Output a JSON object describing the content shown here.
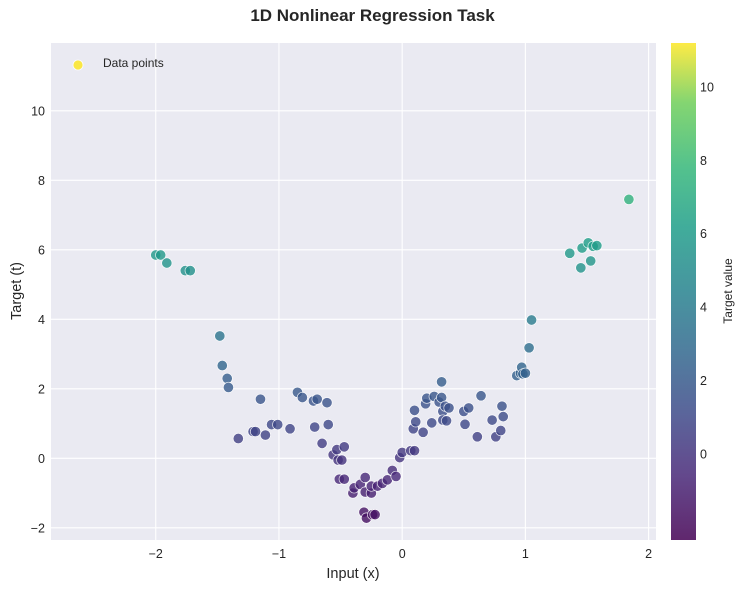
{
  "chart_data": {
    "type": "scatter",
    "title": "1D Nonlinear Regression Task",
    "xlabel": "Input (x)",
    "ylabel": "Target (t)",
    "xlim": [
      -2.85,
      2.06
    ],
    "ylim": [
      -2.35,
      11.95
    ],
    "xticks": [
      -2,
      -1,
      0,
      1,
      2
    ],
    "xtick_labels": [
      "−2",
      "−1",
      "0",
      "1",
      "2"
    ],
    "yticks": [
      -2,
      0,
      2,
      4,
      6,
      8,
      10
    ],
    "ytick_labels": [
      "−2",
      "0",
      "2",
      "4",
      "6",
      "8",
      "10"
    ],
    "grid": true,
    "legend": {
      "position": "upper left",
      "entries": [
        "Data points"
      ]
    },
    "colorbar": {
      "label": "Target value",
      "colormap": "viridis",
      "range": [
        -2.35,
        11.2
      ],
      "ticks": [
        0,
        2,
        4,
        6,
        8,
        10
      ],
      "tick_labels": [
        "0",
        "2",
        "4",
        "6",
        "8",
        "10"
      ]
    },
    "series": [
      {
        "name": "Data points",
        "points": [
          {
            "x": -2.0,
            "y": 5.85
          },
          {
            "x": -1.96,
            "y": 5.85
          },
          {
            "x": -1.91,
            "y": 5.62
          },
          {
            "x": -1.76,
            "y": 5.4
          },
          {
            "x": -1.72,
            "y": 5.4
          },
          {
            "x": -1.48,
            "y": 3.52
          },
          {
            "x": -1.46,
            "y": 2.67
          },
          {
            "x": -1.42,
            "y": 2.3
          },
          {
            "x": -1.41,
            "y": 2.04
          },
          {
            "x": -1.33,
            "y": 0.57
          },
          {
            "x": -1.21,
            "y": 0.77
          },
          {
            "x": -1.19,
            "y": 0.77
          },
          {
            "x": -1.15,
            "y": 1.7
          },
          {
            "x": -1.11,
            "y": 0.67
          },
          {
            "x": -1.06,
            "y": 0.97
          },
          {
            "x": -1.01,
            "y": 0.97
          },
          {
            "x": -0.91,
            "y": 0.85
          },
          {
            "x": -0.85,
            "y": 1.9
          },
          {
            "x": -0.81,
            "y": 1.75
          },
          {
            "x": -0.72,
            "y": 1.65
          },
          {
            "x": -0.69,
            "y": 1.7
          },
          {
            "x": -0.71,
            "y": 0.9
          },
          {
            "x": -0.65,
            "y": 0.43
          },
          {
            "x": -0.61,
            "y": 1.6
          },
          {
            "x": -0.6,
            "y": 0.97
          },
          {
            "x": -0.56,
            "y": 0.1
          },
          {
            "x": -0.53,
            "y": 0.25
          },
          {
            "x": -0.52,
            "y": -0.05
          },
          {
            "x": -0.49,
            "y": -0.05
          },
          {
            "x": -0.47,
            "y": 0.33
          },
          {
            "x": -0.51,
            "y": -0.6
          },
          {
            "x": -0.47,
            "y": -0.6
          },
          {
            "x": -0.4,
            "y": -1.0
          },
          {
            "x": -0.39,
            "y": -0.85
          },
          {
            "x": -0.34,
            "y": -0.75
          },
          {
            "x": -0.3,
            "y": -0.55
          },
          {
            "x": -0.3,
            "y": -0.97
          },
          {
            "x": -0.25,
            "y": -1.0
          },
          {
            "x": -0.25,
            "y": -0.8
          },
          {
            "x": -0.2,
            "y": -0.8
          },
          {
            "x": -0.16,
            "y": -0.72
          },
          {
            "x": -0.12,
            "y": -0.62
          },
          {
            "x": -0.08,
            "y": -0.35
          },
          {
            "x": -0.05,
            "y": -0.52
          },
          {
            "x": -0.31,
            "y": -1.55
          },
          {
            "x": -0.29,
            "y": -1.72
          },
          {
            "x": -0.24,
            "y": -1.62
          },
          {
            "x": -0.22,
            "y": -1.62
          },
          {
            "x": -0.02,
            "y": 0.02
          },
          {
            "x": 0.0,
            "y": 0.17
          },
          {
            "x": 0.07,
            "y": 0.22
          },
          {
            "x": 0.1,
            "y": 0.22
          },
          {
            "x": 0.09,
            "y": 0.85
          },
          {
            "x": 0.11,
            "y": 1.05
          },
          {
            "x": 0.1,
            "y": 1.38
          },
          {
            "x": 0.17,
            "y": 0.75
          },
          {
            "x": 0.19,
            "y": 1.57
          },
          {
            "x": 0.2,
            "y": 1.73
          },
          {
            "x": 0.24,
            "y": 1.02
          },
          {
            "x": 0.26,
            "y": 1.78
          },
          {
            "x": 0.3,
            "y": 1.62
          },
          {
            "x": 0.32,
            "y": 1.75
          },
          {
            "x": 0.32,
            "y": 2.2
          },
          {
            "x": 0.33,
            "y": 1.35
          },
          {
            "x": 0.33,
            "y": 1.1
          },
          {
            "x": 0.35,
            "y": 1.5
          },
          {
            "x": 0.36,
            "y": 1.08
          },
          {
            "x": 0.38,
            "y": 1.45
          },
          {
            "x": 0.5,
            "y": 1.35
          },
          {
            "x": 0.51,
            "y": 0.98
          },
          {
            "x": 0.54,
            "y": 1.45
          },
          {
            "x": 0.61,
            "y": 0.62
          },
          {
            "x": 0.64,
            "y": 1.8
          },
          {
            "x": 0.73,
            "y": 1.1
          },
          {
            "x": 0.76,
            "y": 0.62
          },
          {
            "x": 0.8,
            "y": 0.8
          },
          {
            "x": 0.81,
            "y": 1.5
          },
          {
            "x": 0.82,
            "y": 1.2
          },
          {
            "x": 0.93,
            "y": 2.38
          },
          {
            "x": 0.96,
            "y": 2.45
          },
          {
            "x": 0.97,
            "y": 2.62
          },
          {
            "x": 0.98,
            "y": 2.43
          },
          {
            "x": 1.0,
            "y": 2.45
          },
          {
            "x": 1.03,
            "y": 3.18
          },
          {
            "x": 1.05,
            "y": 3.98
          },
          {
            "x": 1.36,
            "y": 5.9
          },
          {
            "x": 1.46,
            "y": 6.05
          },
          {
            "x": 1.45,
            "y": 5.48
          },
          {
            "x": 1.51,
            "y": 6.2
          },
          {
            "x": 1.53,
            "y": 5.68
          },
          {
            "x": 1.55,
            "y": 6.1
          },
          {
            "x": 1.58,
            "y": 6.12
          },
          {
            "x": 1.84,
            "y": 7.45
          }
        ]
      }
    ]
  }
}
